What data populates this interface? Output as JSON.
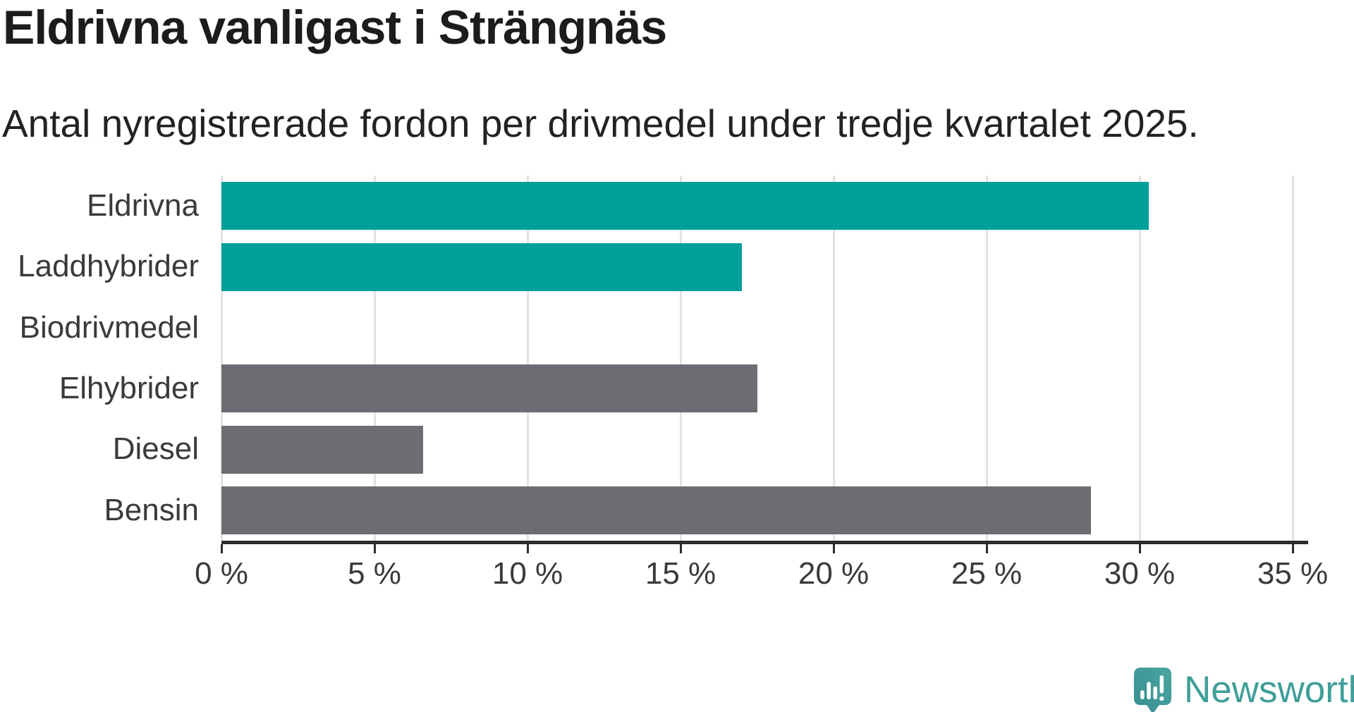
{
  "title": "Eldrivna vanligast i Strängnäs",
  "subtitle": "Antal nyregistrerade fordon per drivmedel under tredje kvartalet 2025.",
  "branding": {
    "name": "Newsworthy",
    "icon": "newsworthy-logo-icon",
    "text_color": "#3f9e98",
    "icon_color_top": "#4aa5a2",
    "icon_color_bottom": "#388e90"
  },
  "colors": {
    "highlight_teal": "#00a099",
    "default_gray": "#6c6c72",
    "grid": "#e2e2e2",
    "axis": "#2d2d2d",
    "text_dark": "#1c1c1c",
    "text_label": "#3a3a3a"
  },
  "chart_data": {
    "type": "bar",
    "orientation": "horizontal",
    "title": "Eldrivna vanligast i Strängnäs",
    "subtitle": "Antal nyregistrerade fordon per drivmedel under tredje kvartalet 2025.",
    "categories": [
      "Eldrivna",
      "Laddhybrider",
      "Biodrivmedel",
      "Elhybrider",
      "Diesel",
      "Bensin"
    ],
    "values": [
      30.3,
      17.0,
      0,
      17.5,
      6.6,
      28.4
    ],
    "unit": "%",
    "bar_colors": [
      "#00a099",
      "#00a099",
      "#6c6c72",
      "#6c6c72",
      "#6c6c72",
      "#6c6c72"
    ],
    "xlabel": "",
    "ylabel": "",
    "xlim": [
      0,
      35
    ],
    "x_ticks": [
      0,
      5,
      10,
      15,
      20,
      25,
      30,
      35
    ],
    "x_tick_labels": [
      "0 %",
      "5 %",
      "10 %",
      "15 %",
      "20 %",
      "25 %",
      "30 %",
      "35 %"
    ],
    "grid": true,
    "legend": false
  }
}
